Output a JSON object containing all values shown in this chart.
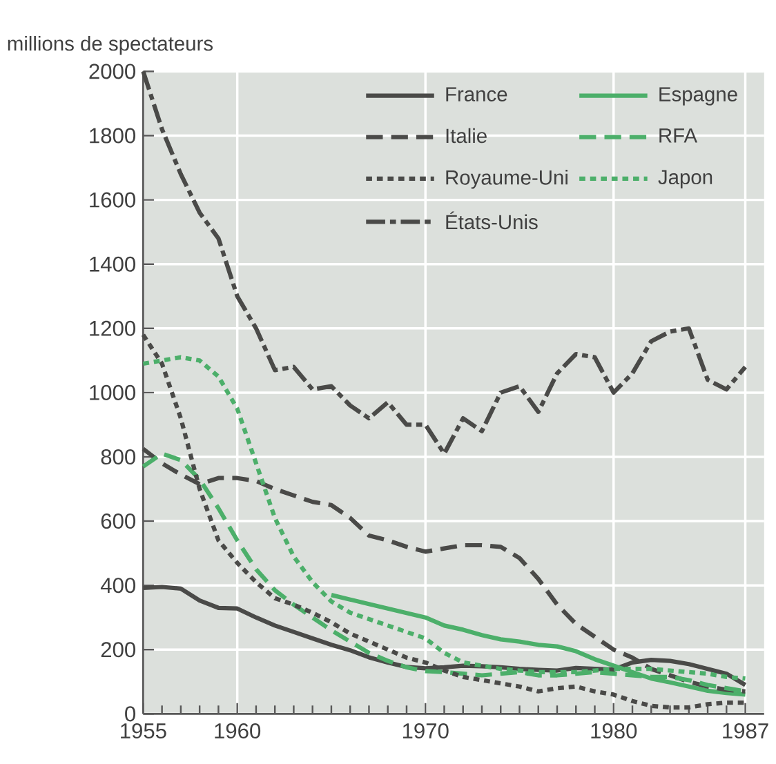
{
  "chart_data": {
    "type": "line",
    "ylabel": "millions de spectateurs",
    "x": [
      1955,
      1956,
      1957,
      1958,
      1959,
      1960,
      1961,
      1962,
      1963,
      1964,
      1965,
      1966,
      1967,
      1968,
      1969,
      1970,
      1971,
      1972,
      1973,
      1974,
      1975,
      1976,
      1977,
      1978,
      1979,
      1980,
      1981,
      1982,
      1983,
      1984,
      1985,
      1986,
      1987
    ],
    "series": [
      {
        "name": "France",
        "color": "#4a4a48",
        "line_style": "solid",
        "values": [
          392,
          395,
          390,
          353,
          330,
          328,
          300,
          275,
          255,
          235,
          215,
          198,
          176,
          160,
          146,
          142,
          145,
          150,
          148,
          145,
          140,
          137,
          135,
          143,
          140,
          138,
          160,
          168,
          165,
          155,
          140,
          125,
          90
        ]
      },
      {
        "name": "Espagne",
        "color": "#4caf6a",
        "line_style": "solid",
        "x": [
          1965,
          1966,
          1967,
          1968,
          1969,
          1970,
          1971,
          1972,
          1973,
          1974,
          1975,
          1976,
          1977,
          1978,
          1979,
          1980,
          1981,
          1982,
          1983,
          1984,
          1985,
          1986,
          1987
        ],
        "values": [
          370,
          356,
          342,
          328,
          314,
          300,
          275,
          262,
          245,
          232,
          225,
          215,
          210,
          195,
          170,
          150,
          130,
          110,
          98,
          85,
          72,
          65,
          60
        ]
      },
      {
        "name": "Italie",
        "color": "#4a4a48",
        "line_style": "dashed",
        "values": [
          825,
          780,
          745,
          715,
          734,
          734,
          725,
          700,
          680,
          660,
          650,
          610,
          555,
          540,
          520,
          505,
          515,
          525,
          525,
          520,
          485,
          420,
          340,
          280,
          240,
          200,
          175,
          140,
          120,
          100,
          85,
          75,
          70
        ]
      },
      {
        "name": "RFA",
        "color": "#4caf6a",
        "line_style": "dashed",
        "values": [
          770,
          810,
          790,
          730,
          640,
          540,
          450,
          385,
          340,
          300,
          260,
          225,
          190,
          165,
          145,
          133,
          130,
          125,
          120,
          125,
          130,
          120,
          120,
          125,
          130,
          125,
          120,
          115,
          115,
          105,
          90,
          80,
          70
        ]
      },
      {
        "name": "Royaume-Uni",
        "color": "#4a4a48",
        "line_style": "dotted",
        "values": [
          1180,
          1090,
          920,
          700,
          540,
          470,
          410,
          360,
          340,
          315,
          285,
          250,
          225,
          200,
          175,
          160,
          135,
          115,
          105,
          95,
          85,
          70,
          80,
          85,
          70,
          60,
          40,
          25,
          20,
          20,
          30,
          35,
          35
        ]
      },
      {
        "name": "Japon",
        "color": "#4caf6a",
        "line_style": "dotted",
        "values": [
          1090,
          1100,
          1110,
          1100,
          1050,
          950,
          780,
          610,
          490,
          410,
          350,
          315,
          295,
          275,
          255,
          235,
          190,
          160,
          150,
          140,
          135,
          130,
          130,
          130,
          135,
          140,
          140,
          140,
          135,
          130,
          125,
          115,
          110
        ]
      },
      {
        "name": "États-Unis",
        "color": "#4a4a48",
        "line_style": "dashdotted",
        "values": [
          2000,
          1820,
          1680,
          1560,
          1480,
          1300,
          1200,
          1070,
          1080,
          1010,
          1020,
          960,
          920,
          970,
          900,
          900,
          810,
          920,
          880,
          1000,
          1020,
          940,
          1060,
          1120,
          1110,
          1000,
          1060,
          1160,
          1190,
          1200,
          1040,
          1010,
          1080
        ]
      }
    ],
    "xlim": [
      1955,
      1988
    ],
    "ylim": [
      0,
      2000
    ],
    "xticks": [
      1955,
      {
        "value": 1956,
        "label": null
      },
      {
        "value": 1957,
        "label": null
      },
      {
        "value": 1958,
        "label": null
      },
      {
        "value": 1959,
        "label": null
      },
      1960,
      {
        "value": 1961,
        "label": null
      },
      {
        "value": 1962,
        "label": null
      },
      {
        "value": 1963,
        "label": null
      },
      {
        "value": 1964,
        "label": null
      },
      {
        "value": 1965,
        "label": null
      },
      {
        "value": 1966,
        "label": null
      },
      {
        "value": 1967,
        "label": null
      },
      {
        "value": 1968,
        "label": null
      },
      {
        "value": 1969,
        "label": null
      },
      1970,
      {
        "value": 1971,
        "label": null
      },
      {
        "value": 1972,
        "label": null
      },
      {
        "value": 1973,
        "label": null
      },
      {
        "value": 1974,
        "label": null
      },
      {
        "value": 1975,
        "label": null
      },
      {
        "value": 1976,
        "label": null
      },
      {
        "value": 1977,
        "label": null
      },
      {
        "value": 1978,
        "label": null
      },
      {
        "value": 1979,
        "label": null
      },
      1980,
      {
        "value": 1981,
        "label": null
      },
      {
        "value": 1982,
        "label": null
      },
      {
        "value": 1983,
        "label": null
      },
      {
        "value": 1984,
        "label": null
      },
      {
        "value": 1985,
        "label": null
      },
      {
        "value": 1986,
        "label": null
      },
      1987
    ],
    "yticks": [
      0,
      200,
      400,
      600,
      800,
      1000,
      1200,
      1400,
      1600,
      1800,
      2000
    ],
    "grid": true,
    "legend": "top right",
    "marker": "none"
  }
}
